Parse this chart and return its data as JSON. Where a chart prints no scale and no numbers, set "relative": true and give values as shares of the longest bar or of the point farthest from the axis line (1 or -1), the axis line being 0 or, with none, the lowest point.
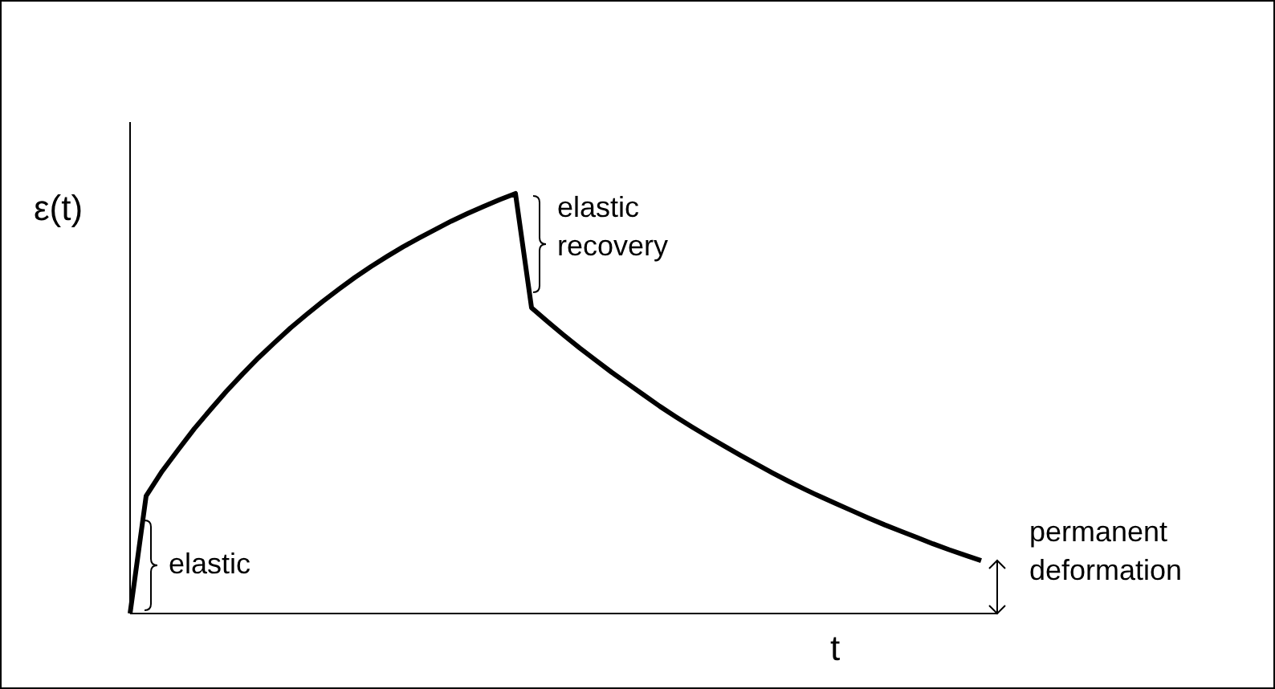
{
  "chart_data": {
    "type": "line",
    "relative": true,
    "xlabel": "t",
    "ylabel": "ε(t)",
    "color": "#000000",
    "categories": [
      null,
      null,
      null,
      null,
      null,
      null,
      null,
      null,
      null,
      null,
      null,
      null,
      null,
      null,
      null,
      null,
      null,
      null,
      null,
      null,
      null,
      null,
      null,
      null,
      null,
      null,
      null,
      null,
      null,
      null,
      null,
      null,
      null,
      null,
      null,
      null,
      null,
      null,
      null,
      null,
      null,
      null,
      null,
      null,
      null,
      null,
      null,
      null,
      null,
      null,
      null,
      null,
      null,
      null,
      null
    ],
    "values": [
      0,
      0.28,
      0.339,
      0.39,
      0.44,
      0.485,
      0.529,
      0.57,
      0.609,
      0.645,
      0.68,
      0.712,
      0.743,
      0.772,
      0.8,
      0.826,
      0.85,
      0.873,
      0.894,
      0.914,
      0.934,
      0.952,
      0.969,
      0.985,
      1,
      0.728,
      0.695,
      0.663,
      0.632,
      0.603,
      0.574,
      0.547,
      0.52,
      0.493,
      0.468,
      0.444,
      0.421,
      0.399,
      0.377,
      0.356,
      0.335,
      0.315,
      0.296,
      0.278,
      0.261,
      0.244,
      0.227,
      0.211,
      0.196,
      0.181,
      0.166,
      0.152,
      0.139,
      0.126,
      null
    ],
    "annotations": [
      "elastic",
      "elastic recovery",
      "permanent deformation"
    ]
  }
}
